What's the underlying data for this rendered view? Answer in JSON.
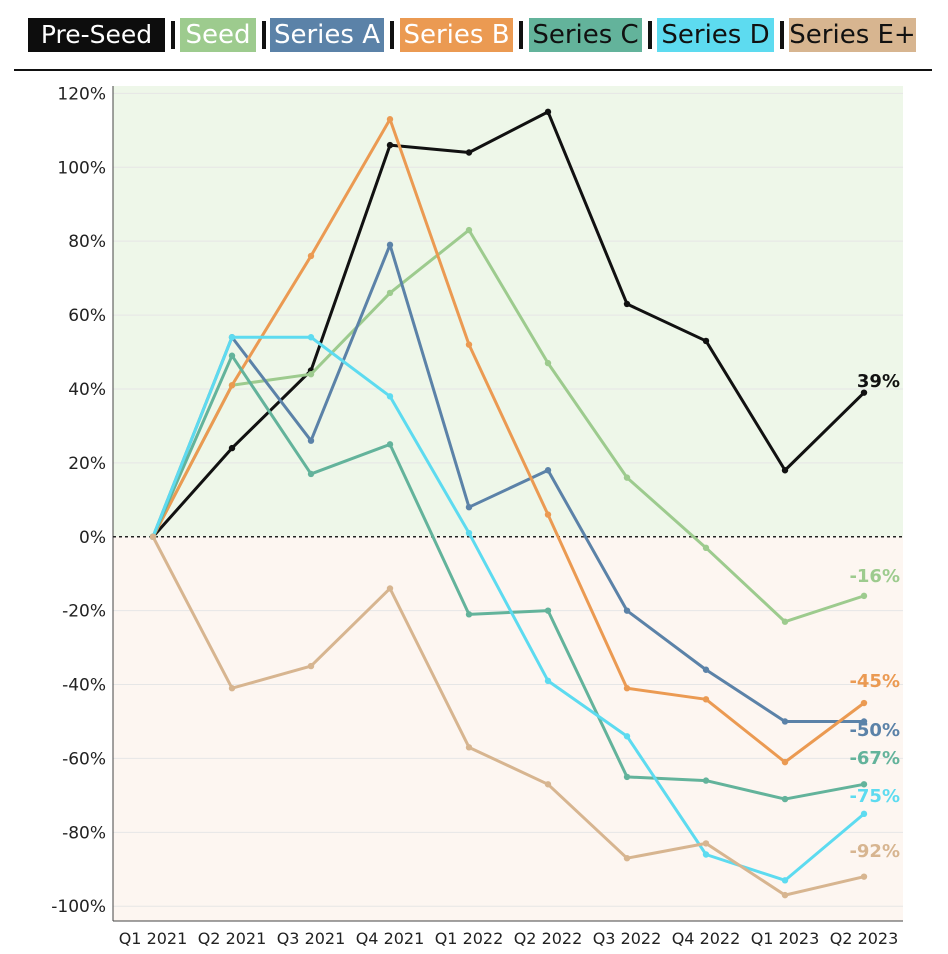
{
  "chart_data": {
    "type": "line",
    "title": "",
    "xlabel": "",
    "ylabel": "",
    "categories": [
      "Q1 2021",
      "Q2 2021",
      "Q3 2021",
      "Q4 2021",
      "Q1 2022",
      "Q2 2022",
      "Q3 2022",
      "Q4 2022",
      "Q1 2023",
      "Q2 2023"
    ],
    "ylim": [
      -104,
      122
    ],
    "yticks": [
      120,
      100,
      80,
      60,
      40,
      20,
      0,
      -20,
      -40,
      -60,
      -80,
      -100
    ],
    "ytick_labels": [
      "120%",
      "100%",
      "80%",
      "60%",
      "40%",
      "20%",
      "0%",
      "-20%",
      "-40%",
      "-60%",
      "-80%",
      "-100%"
    ],
    "legend_position": "top",
    "zero_line": "dotted",
    "positive_region_color": "#eef7e9",
    "negative_region_color": "#fdf6f1",
    "series": [
      {
        "name": "Pre-Seed",
        "color": "#111111",
        "legend_bg": "#0d0d0d",
        "legend_fg": "#ffffff",
        "values": [
          0,
          24,
          45,
          106,
          104,
          115,
          63,
          53,
          18,
          39
        ],
        "end_label": "39%"
      },
      {
        "name": "Seed",
        "color": "#9dcb8e",
        "legend_bg": "#9dcb8e",
        "legend_fg": "#ffffff",
        "values": [
          0,
          41,
          44,
          66,
          83,
          47,
          16,
          -3,
          -23,
          -16
        ],
        "end_label": "-16%"
      },
      {
        "name": "Series A",
        "color": "#5b82a8",
        "legend_bg": "#5b82a8",
        "legend_fg": "#ffffff",
        "values": [
          0,
          54,
          26,
          79,
          8,
          18,
          -20,
          -36,
          -50,
          -50
        ],
        "end_label": "-50%"
      },
      {
        "name": "Series B",
        "color": "#eb9a52",
        "legend_bg": "#eb9a52",
        "legend_fg": "#ffffff",
        "values": [
          0,
          41,
          76,
          113,
          52,
          6,
          -41,
          -44,
          -61,
          -45
        ],
        "end_label": "-45%"
      },
      {
        "name": "Series C",
        "color": "#63b39b",
        "legend_bg": "#63b39b",
        "legend_fg": "#111111",
        "values": [
          0,
          49,
          17,
          25,
          -21,
          -20,
          -65,
          -66,
          -71,
          -67
        ],
        "end_label": "-67%"
      },
      {
        "name": "Series D",
        "color": "#5ddbf0",
        "legend_bg": "#5ddbf0",
        "legend_fg": "#111111",
        "values": [
          0,
          54,
          54,
          38,
          1,
          -39,
          -54,
          -86,
          -93,
          -75
        ],
        "end_label": "-75%"
      },
      {
        "name": "Series E+",
        "color": "#d7b590",
        "legend_bg": "#d7b590",
        "legend_fg": "#111111",
        "values": [
          0,
          -41,
          -35,
          -14,
          -57,
          -67,
          -87,
          -83,
          -97,
          -92
        ],
        "end_label": "-92%"
      }
    ]
  }
}
